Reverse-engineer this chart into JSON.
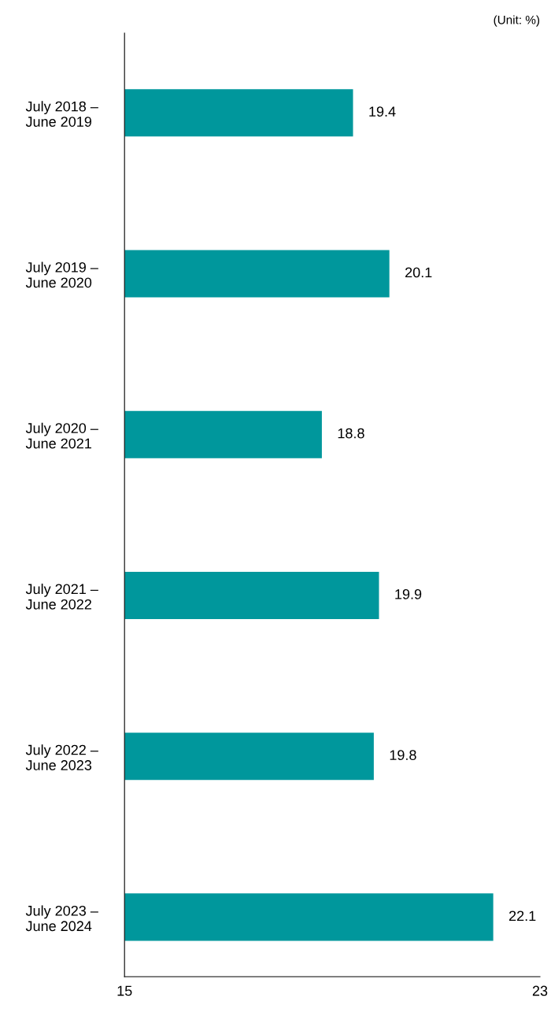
{
  "chart_data": {
    "type": "bar",
    "orientation": "horizontal",
    "categories": [
      "July 2018 –\nJune 2019",
      "July 2019 –\nJune 2020",
      "July 2020 –\nJune 2021",
      "July 2021 –\nJune 2022",
      "July 2022 –\nJune 2023",
      "July 2023 –\nJune 2024"
    ],
    "values": [
      19.4,
      20.1,
      18.8,
      19.9,
      19.8,
      22.1
    ],
    "color": "#00979c",
    "xlim": [
      15,
      23
    ],
    "xticks": [
      15,
      23
    ],
    "data_labels": true,
    "grid": false,
    "legend": false,
    "annotations": [
      "(Unit: %)"
    ]
  }
}
